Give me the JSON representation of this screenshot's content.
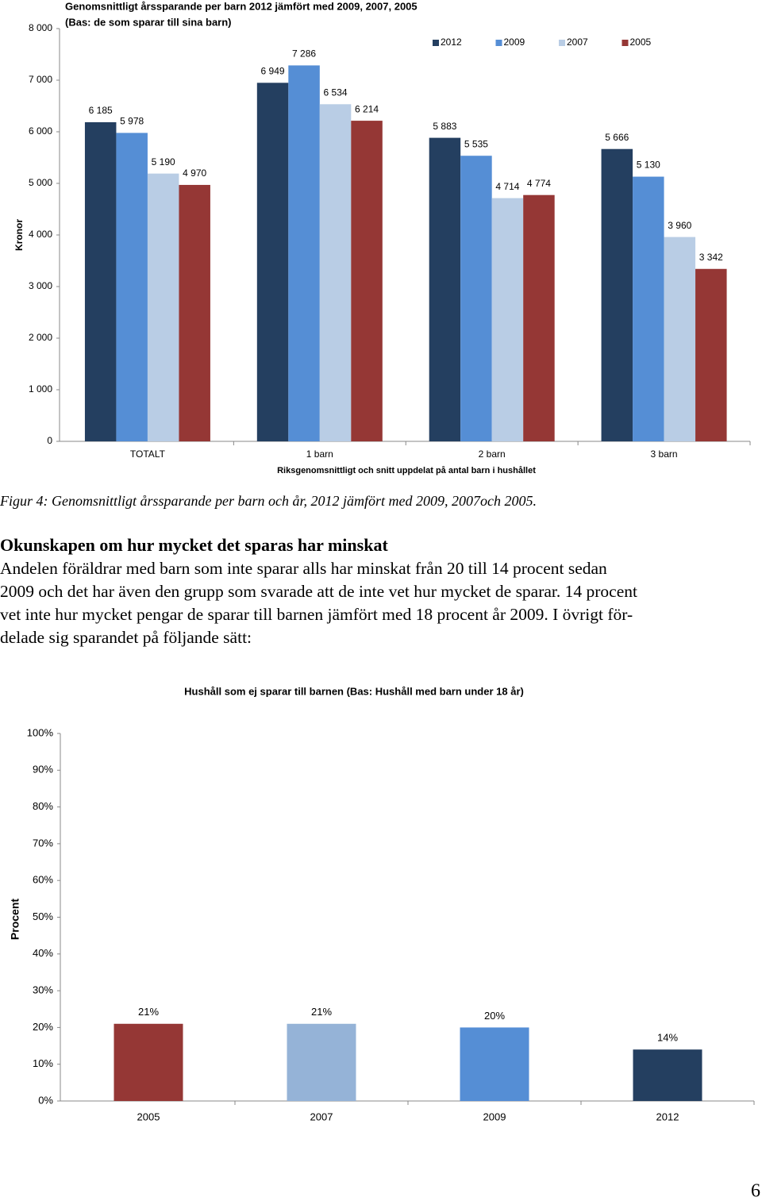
{
  "chart_data": [
    {
      "type": "bar",
      "title": "Genomsnittligt årssparande per barn 2012 jämfört med 2009, 2007, 2005",
      "subtitle": "(Bas: de som sparar till sina barn)",
      "ylabel": "Kronor",
      "xlabel": "Riksgenomsnittligt och snitt uppdelat på antal barn i hushållet",
      "categories": [
        "TOTALT",
        "1 barn",
        "2 barn",
        "3 barn"
      ],
      "series": [
        {
          "name": "2012",
          "color": "#243f60",
          "values": [
            6185,
            6949,
            5883,
            5666
          ],
          "value_labels": [
            "6 185",
            "6 949",
            "5 883",
            "5 666"
          ]
        },
        {
          "name": "2009",
          "color": "#558ed5",
          "values": [
            5978,
            7286,
            5535,
            5130
          ],
          "value_labels": [
            "5 978",
            "7 286",
            "5 535",
            "5 130"
          ]
        },
        {
          "name": "2007",
          "color": "#b9cde5",
          "values": [
            5190,
            6534,
            4714,
            3960
          ],
          "value_labels": [
            "5 190",
            "6 534",
            "4 714",
            "3 960"
          ]
        },
        {
          "name": "2005",
          "color": "#953735",
          "values": [
            4970,
            6214,
            4774,
            3342
          ],
          "value_labels": [
            "4 970",
            "6 214",
            "4 774",
            "3 342"
          ]
        }
      ],
      "ylim": [
        0,
        8000
      ],
      "yticks": [
        0,
        {
          "value": 1000,
          "label": "1 000"
        },
        {
          "value": 2000,
          "label": "2 000"
        },
        {
          "value": 3000,
          "label": "3 000"
        },
        {
          "value": 4000,
          "label": "4 000"
        },
        {
          "value": 5000,
          "label": "5 000"
        },
        {
          "value": 6000,
          "label": "6 000"
        },
        {
          "value": 7000,
          "label": "7 000"
        },
        {
          "value": 8000,
          "label": "8 000"
        }
      ],
      "legend": "top-right"
    },
    {
      "type": "bar",
      "title": "Hushåll som ej sparar till barnen (Bas: Hushåll med barn under 18 år)",
      "ylabel": "Procent",
      "categories": [
        "2005",
        "2007",
        "2009",
        "2012"
      ],
      "values": [
        21,
        21,
        20,
        14
      ],
      "value_labels": [
        "21%",
        "21%",
        "20%",
        "14%"
      ],
      "colors": [
        "#953735",
        "#95b3d7",
        "#558ed5",
        "#243f60"
      ],
      "ylim": [
        0,
        100
      ],
      "yticks": [
        {
          "value": 0,
          "label": "0%"
        },
        {
          "value": 10,
          "label": "10%"
        },
        {
          "value": 20,
          "label": "20%"
        },
        {
          "value": 30,
          "label": "30%"
        },
        {
          "value": 40,
          "label": "40%"
        },
        {
          "value": 50,
          "label": "50%"
        },
        {
          "value": 60,
          "label": "60%"
        },
        {
          "value": 70,
          "label": "70%"
        },
        {
          "value": 80,
          "label": "80%"
        },
        {
          "value": 90,
          "label": "90%"
        },
        {
          "value": 100,
          "label": "100%"
        }
      ]
    }
  ],
  "caption": "Figur 4: Genomsnittligt årssparande per barn och år, 2012 jämfört med 2009, 2007och 2005.",
  "heading": "Okunskapen om hur mycket det sparas har minskat",
  "paragraph_lines": [
    "Andelen föräldrar med barn som inte sparar alls har minskat från 20 till 14 procent sedan",
    "2009 och det har även den grupp som svarade att de inte vet hur mycket de sparar. 14 procent",
    "vet inte hur mycket pengar de sparar till barnen jämfört med 18 procent år 2009. I övrigt för-",
    "delade sig sparandet på följande sätt:"
  ],
  "page_number": "6"
}
